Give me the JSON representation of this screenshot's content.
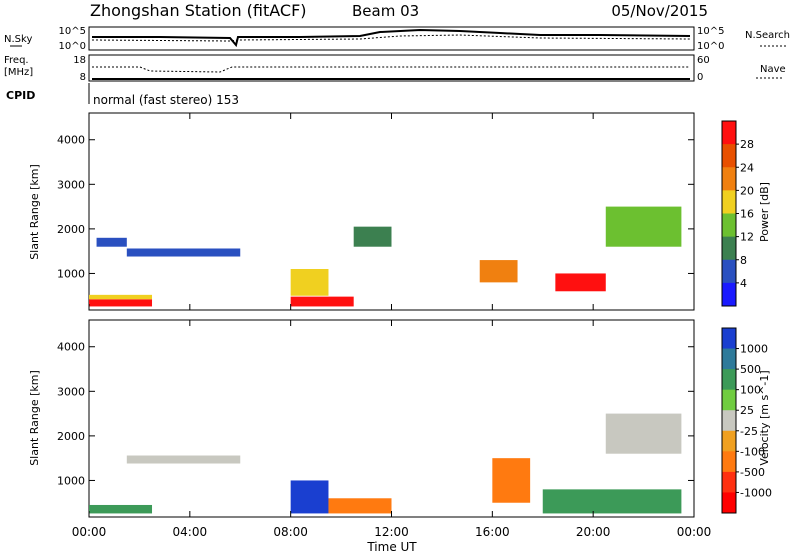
{
  "header": {
    "title": "Zhongshan Station (fitACF)",
    "beam": "Beam 03",
    "date": "05/Nov/2015"
  },
  "top_panels": {
    "nsky_label": "N.Sky",
    "nsky_ticks": [
      "10^5",
      "10^0"
    ],
    "nsearch_label": "N.Search",
    "nsearch_ticks": [
      "10^5",
      "10^0"
    ],
    "freq_label_line1": "Freq.",
    "freq_label_line2": "[MHz]",
    "freq_ticks": [
      "18",
      "8"
    ],
    "nave_label": "Nave",
    "nave_ticks": [
      "60",
      "0"
    ],
    "cpid_label": "CPID",
    "cpid_text": "normal (fast stereo) 153"
  },
  "chart_data": [
    {
      "type": "heatmap",
      "name": "power",
      "xlabel": "",
      "ylabel": "Slant Range [km]",
      "x_range_hours": [
        0,
        24
      ],
      "ylim": [
        180,
        4600
      ],
      "y_ticks": [
        "1000",
        "2000",
        "3000",
        "4000"
      ],
      "colorbar_label": "Power [dB]",
      "colorbar_ticks": [
        "4",
        "8",
        "12",
        "16",
        "20",
        "24",
        "28"
      ],
      "colorbar_colors": [
        "#1a1aff",
        "#2a50c0",
        "#3c8050",
        "#6cc030",
        "#f0d020",
        "#f08010",
        "#e85000",
        "#ff1010"
      ],
      "echo_bands": [
        {
          "t": [
            0.0,
            2.5
          ],
          "r": [
            260,
            420
          ],
          "level": 7
        },
        {
          "t": [
            0.0,
            2.5
          ],
          "r": [
            420,
            520
          ],
          "level": 4
        },
        {
          "t": [
            0.3,
            1.5
          ],
          "r": [
            1600,
            1800
          ],
          "level": 1
        },
        {
          "t": [
            1.5,
            6.0
          ],
          "r": [
            1380,
            1560
          ],
          "level": 1
        },
        {
          "t": [
            8.0,
            10.5
          ],
          "r": [
            260,
            480
          ],
          "level": 7
        },
        {
          "t": [
            8.0,
            9.5
          ],
          "r": [
            500,
            1100
          ],
          "level": 4
        },
        {
          "t": [
            10.5,
            12.0
          ],
          "r": [
            1600,
            2050
          ],
          "level": 2
        },
        {
          "t": [
            15.5,
            17.0
          ],
          "r": [
            800,
            1300
          ],
          "level": 5
        },
        {
          "t": [
            18.5,
            20.5
          ],
          "r": [
            600,
            1000
          ],
          "level": 7
        },
        {
          "t": [
            20.5,
            23.5
          ],
          "r": [
            1600,
            2500
          ],
          "level": 3
        }
      ]
    },
    {
      "type": "heatmap",
      "name": "velocity",
      "xlabel": "Time UT",
      "ylabel": "Slant Range [km]",
      "x_range_hours": [
        0,
        24
      ],
      "x_ticks": [
        "00:00",
        "04:00",
        "08:00",
        "12:00",
        "16:00",
        "20:00",
        "00:00"
      ],
      "ylim": [
        180,
        4600
      ],
      "y_ticks": [
        "1000",
        "2000",
        "3000",
        "4000"
      ],
      "colorbar_label": "Velocity [m s^-1]",
      "colorbar_ticks": [
        "1000",
        "500",
        "100",
        "25",
        "-25",
        "-100",
        "-500",
        "-1000"
      ],
      "colorbar_colors": [
        "#1a3fd0",
        "#2e7a9a",
        "#3c9a58",
        "#70cc40",
        "#c8c8c0",
        "#f0a020",
        "#ff7a10",
        "#ff3010",
        "#ff0000"
      ],
      "echo_bands": [
        {
          "t": [
            0.0,
            2.5
          ],
          "r": [
            260,
            450
          ],
          "level": 2
        },
        {
          "t": [
            1.5,
            6.0
          ],
          "r": [
            1380,
            1560
          ],
          "level": 4
        },
        {
          "t": [
            8.0,
            9.5
          ],
          "r": [
            260,
            1000
          ],
          "level": 0
        },
        {
          "t": [
            9.5,
            12.0
          ],
          "r": [
            260,
            600
          ],
          "level": 6
        },
        {
          "t": [
            16.0,
            17.5
          ],
          "r": [
            500,
            1500
          ],
          "level": 6
        },
        {
          "t": [
            18.0,
            23.5
          ],
          "r": [
            260,
            800
          ],
          "level": 2
        },
        {
          "t": [
            20.5,
            23.5
          ],
          "r": [
            1600,
            2500
          ],
          "level": 4
        }
      ]
    }
  ]
}
